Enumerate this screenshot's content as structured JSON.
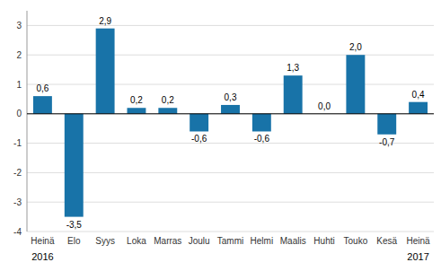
{
  "chart_data": {
    "type": "bar",
    "categories": [
      "Heinä",
      "Elo",
      "Syys",
      "Loka",
      "Marras",
      "Joulu",
      "Tammi",
      "Helmi",
      "Maalis",
      "Huhti",
      "Touko",
      "Kesä",
      "Heinä"
    ],
    "values": [
      0.6,
      -3.5,
      2.9,
      0.2,
      0.2,
      -0.6,
      0.3,
      -0.6,
      1.3,
      0.0,
      2.0,
      -0.7,
      0.4
    ],
    "value_labels": [
      "0,6",
      "-3,5",
      "2,9",
      "0,2",
      "0,2",
      "-0,6",
      "0,3",
      "-0,6",
      "1,3",
      "0,0",
      "2,0",
      "-0,7",
      "0,4"
    ],
    "data_labels": true,
    "color": "#1873a8",
    "ylim": [
      -4,
      3.5
    ],
    "yticks": [
      -4,
      -3,
      -2,
      -1,
      0,
      1,
      2,
      3
    ],
    "grid": true,
    "annotations": [
      {
        "text": "2016",
        "x": 0
      },
      {
        "text": "2017",
        "x": 12
      }
    ]
  }
}
